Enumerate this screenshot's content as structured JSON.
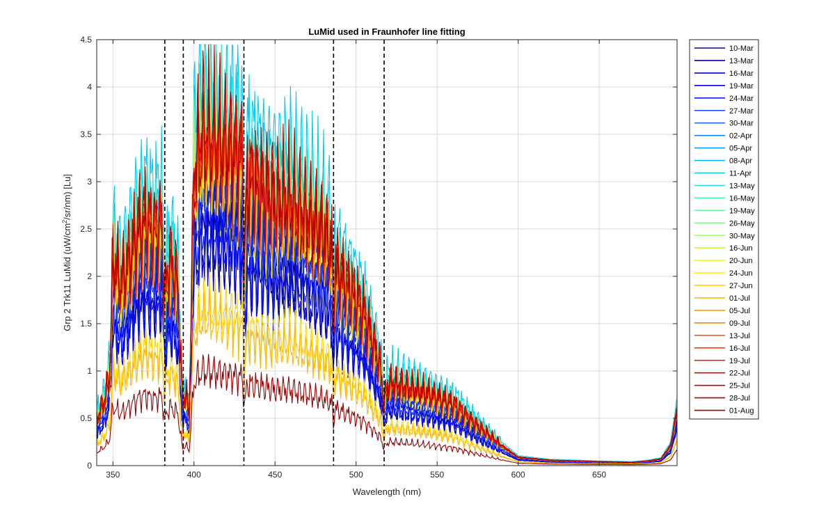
{
  "chart_data": {
    "type": "line",
    "title": "LuMid used in Fraunhofer line fitting",
    "xlabel": "Wavelength (nm)",
    "ylabel_prefix": "Grp 2 Trk11 LuMid (uW/cm",
    "ylabel_sup": "2",
    "ylabel_suffix": "/sr/nm) [Lu]",
    "xlim": [
      340,
      698
    ],
    "ylim": [
      0,
      4.5
    ],
    "xticks": [
      350,
      400,
      450,
      500,
      550,
      600,
      650
    ],
    "yticks": [
      0,
      0.5,
      1,
      1.5,
      2,
      2.5,
      3,
      3.5,
      4,
      4.5
    ],
    "ytick_labels": [
      "0",
      "0.5",
      "1",
      "1.5",
      "2",
      "2.5",
      "3",
      "3.5",
      "4",
      "4.5"
    ],
    "grid": true,
    "legend_position": "outside-right",
    "fraunhofer_lines_nm": [
      382,
      393.4,
      430.8,
      486.1,
      517.3
    ],
    "series": [
      {
        "name": "10-Mar",
        "color": "#00008f",
        "scale": 0.6
      },
      {
        "name": "13-Mar",
        "color": "#0000a8",
        "scale": 0.72
      },
      {
        "name": "16-Mar",
        "color": "#0000c4",
        "scale": 0.8
      },
      {
        "name": "19-Mar",
        "color": "#0000e0",
        "scale": 0.58
      },
      {
        "name": "24-Mar",
        "color": "#0a1aff",
        "scale": 0.65
      },
      {
        "name": "27-Mar",
        "color": "#1540ff",
        "scale": 0.78
      },
      {
        "name": "30-Mar",
        "color": "#2563ff",
        "scale": 0.88
      },
      {
        "name": "02-Apr",
        "color": "#0a84ff",
        "scale": 0.92
      },
      {
        "name": "05-Apr",
        "color": "#00a0ff",
        "scale": 0.95
      },
      {
        "name": "08-Apr",
        "color": "#00b8f0",
        "scale": 0.98
      },
      {
        "name": "11-Apr",
        "color": "#00ccf0",
        "scale": 1.08
      },
      {
        "name": "13-May",
        "color": "#22ecd8",
        "scale": 0.98
      },
      {
        "name": "16-May",
        "color": "#40f0c0",
        "scale": 0.97
      },
      {
        "name": "19-May",
        "color": "#60f4a4",
        "scale": 0.93
      },
      {
        "name": "26-May",
        "color": "#80f890",
        "scale": 0.9
      },
      {
        "name": "30-May",
        "color": "#a0fa70",
        "scale": 0.88
      },
      {
        "name": "16-Jun",
        "color": "#c2fc50",
        "scale": 0.86
      },
      {
        "name": "20-Jun",
        "color": "#e0fc30",
        "scale": 0.84
      },
      {
        "name": "24-Jun",
        "color": "#fff000",
        "scale": 0.82
      },
      {
        "name": "27-Jun",
        "color": "#ffd400",
        "scale": 0.44
      },
      {
        "name": "01-Jul",
        "color": "#ffb800",
        "scale": 0.4
      },
      {
        "name": "05-Jul",
        "color": "#ff9c00",
        "scale": 0.84
      },
      {
        "name": "09-Jul",
        "color": "#ff8000",
        "scale": 0.86
      },
      {
        "name": "13-Jul",
        "color": "#ff5e00",
        "scale": 0.88
      },
      {
        "name": "16-Jul",
        "color": "#ff3c00",
        "scale": 0.9
      },
      {
        "name": "19-Jul",
        "color": "#f21800",
        "scale": 0.92
      },
      {
        "name": "22-Jul",
        "color": "#e00000",
        "scale": 0.94
      },
      {
        "name": "25-Jul",
        "color": "#c80000",
        "scale": 0.96
      },
      {
        "name": "28-Jul",
        "color": "#b00000",
        "scale": 0.86
      },
      {
        "name": "01-Aug",
        "color": "#960000",
        "scale": 0.26
      }
    ]
  }
}
